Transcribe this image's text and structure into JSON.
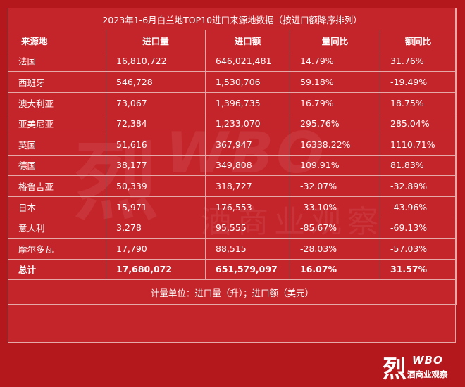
{
  "title": "2023年1-6月白兰地TOP10进口来源地数据（按进口额降序排列）",
  "columns": [
    "来源地",
    "进口量",
    "进口额",
    "量同比",
    "额同比"
  ],
  "rows": [
    [
      "法国",
      "16,810,722",
      "646,021,481",
      "14.79%",
      "31.76%"
    ],
    [
      "西班牙",
      "546,728",
      "1,530,706",
      "59.18%",
      "-19.49%"
    ],
    [
      "澳大利亚",
      "73,067",
      "1,396,735",
      "16.79%",
      "18.75%"
    ],
    [
      "亚美尼亚",
      "72,384",
      "1,233,070",
      "295.76%",
      "285.04%"
    ],
    [
      "英国",
      "51,616",
      "367,947",
      "16338.22%",
      "1110.71%"
    ],
    [
      "德国",
      "38,177",
      "349,808",
      "109.91%",
      "81.83%"
    ],
    [
      "格鲁吉亚",
      "50,339",
      "318,727",
      "-32.07%",
      "-32.89%"
    ],
    [
      "日本",
      "15,971",
      "176,553",
      "-33.10%",
      "-43.96%"
    ],
    [
      "意大利",
      "3,278",
      "95,555",
      "-85.67%",
      "-69.13%"
    ],
    [
      "摩尔多瓦",
      "17,790",
      "88,515",
      "-28.03%",
      "-57.03%"
    ]
  ],
  "total": [
    "总计",
    "17,680,072",
    "651,579,097",
    "16.07%",
    "31.57%"
  ],
  "footnote": "计量单位：进口量（升）；进口额（美元）",
  "watermark_text": "酒商业观察",
  "logo": {
    "mark": "烈",
    "brand": "WBO",
    "subtitle": "酒商业观察"
  },
  "colors": {
    "background": "#b5181c",
    "table": "#c4252b",
    "grid": "#e7a8a8",
    "text": "#ffffff"
  }
}
